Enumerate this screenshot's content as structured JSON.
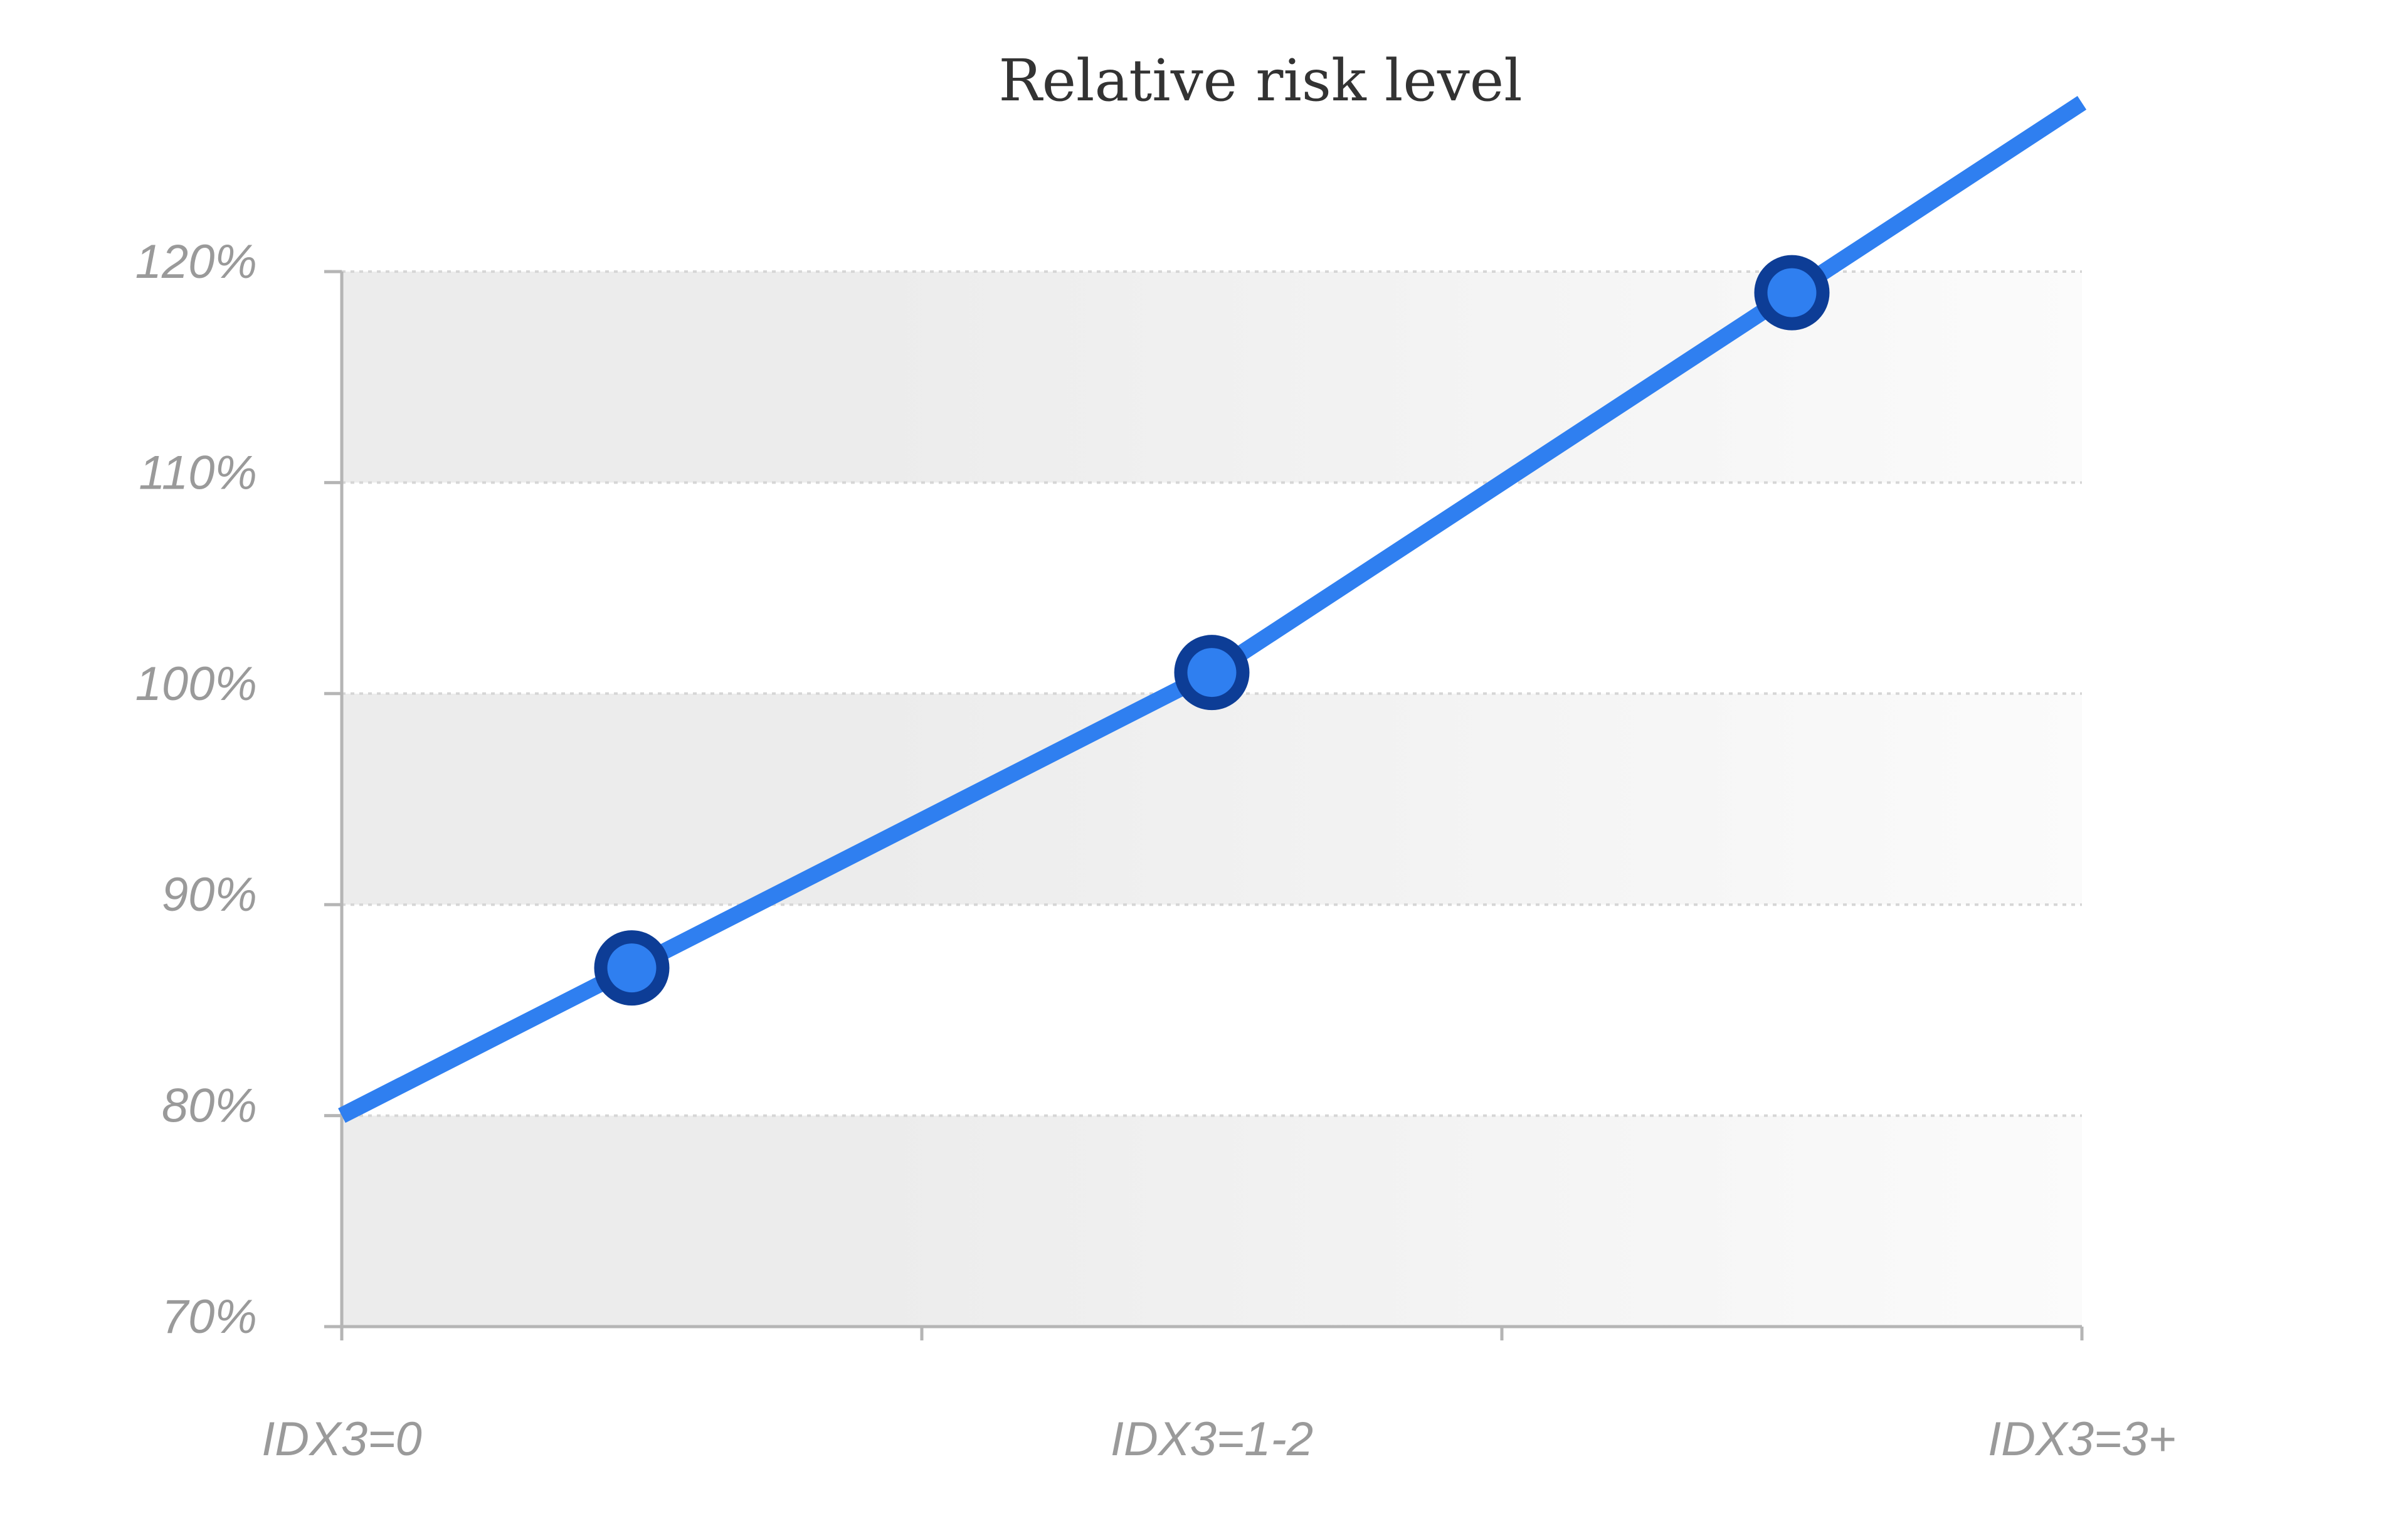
{
  "chart_data": {
    "type": "line",
    "title": "Relative risk level",
    "xlabel": "",
    "ylabel": "",
    "categories": [
      "IDX3=0",
      "IDX3=1-2",
      "IDX3=3+"
    ],
    "series": [
      {
        "values": [
          87,
          101,
          119
        ]
      }
    ],
    "y_ticks": [
      "70%",
      "80%",
      "90%",
      "100%",
      "110%",
      "120%"
    ],
    "y_tick_values": [
      70,
      80,
      90,
      100,
      110,
      120
    ],
    "ylim": [
      70,
      120
    ],
    "grid": true,
    "legend": "none",
    "colors": {
      "line": "#2f7ff0",
      "marker_fill": "#2f7ff0",
      "marker_stroke": "#0d3d96",
      "band_dark": "#ececec",
      "band_light": "#ffffff"
    }
  }
}
